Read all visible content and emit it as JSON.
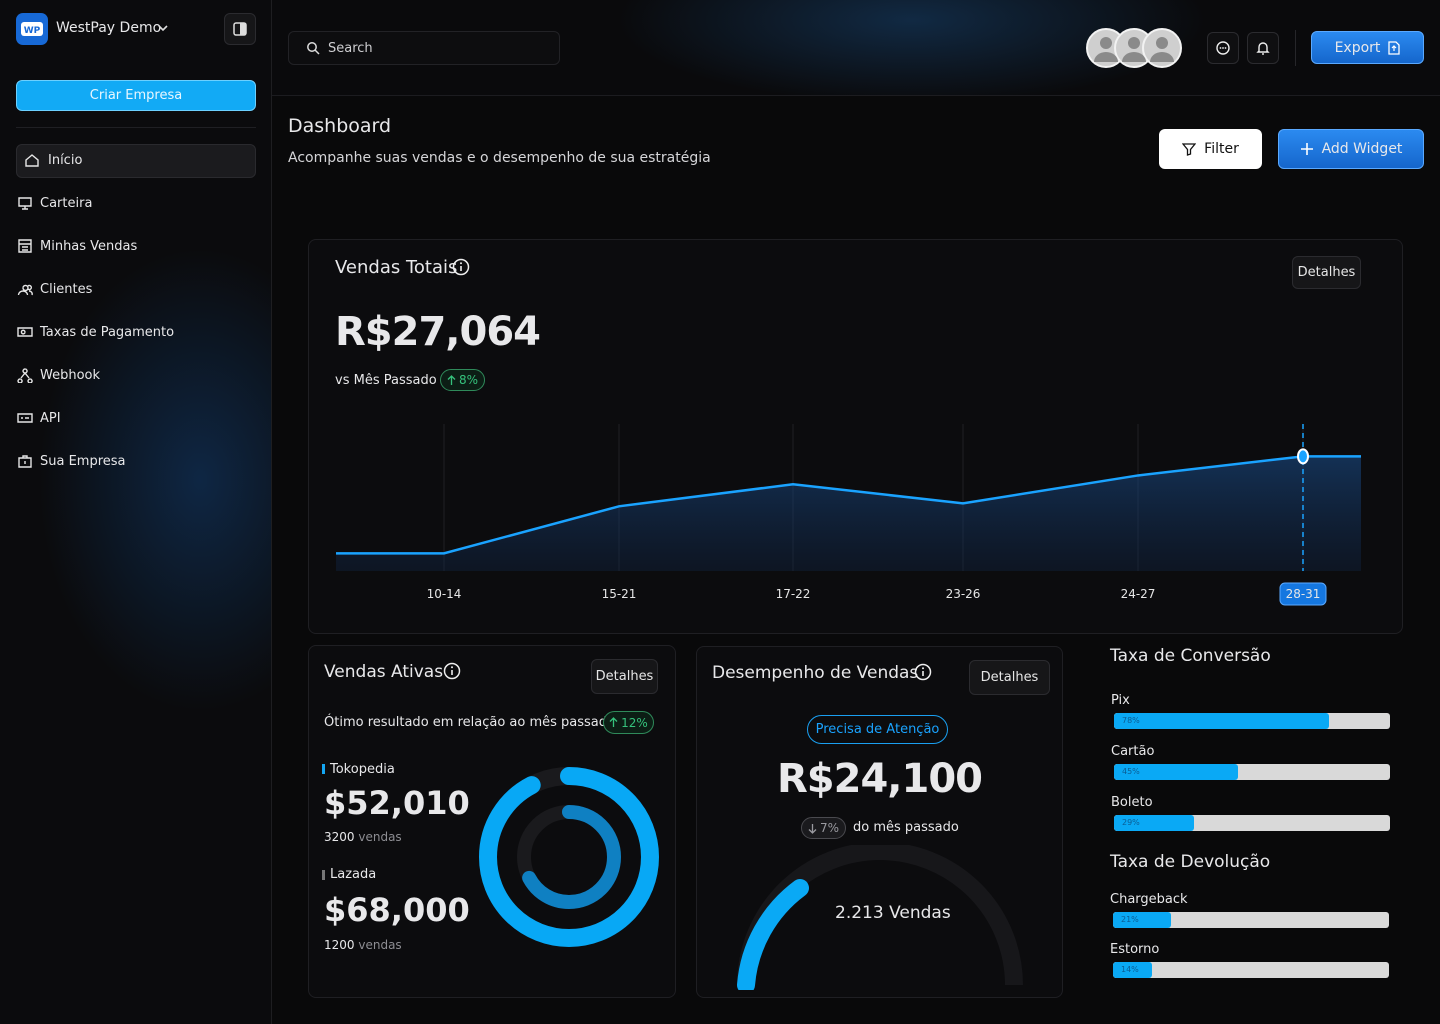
{
  "sidebar": {
    "brand": "WestPay Demo",
    "create_button": "Criar Empresa",
    "nav": [
      "Início",
      "Carteira",
      "Minhas Vendas",
      "Clientes",
      "Taxas de Pagamento",
      "Webhook",
      "API",
      "Sua Empresa"
    ]
  },
  "topbar": {
    "search": "Search",
    "export": "Export"
  },
  "header": {
    "title": "Dashboard",
    "subtitle": "Acompanhe suas vendas e o desempenho de sua estratégia",
    "filter": "Filter",
    "add_widget": "Add Widget"
  },
  "total_sales": {
    "title": "Vendas Totais",
    "details": "Detalhes",
    "amount": "R$27,064",
    "comparison": "vs Mês Passado",
    "change": "8%",
    "chart": {
      "type": "line",
      "categories": [
        "10-14",
        "15-21",
        "17-22",
        "23-26",
        "24-27",
        "28-31"
      ],
      "values": [
        12,
        44,
        59,
        46,
        65,
        78
      ],
      "ylim": [
        0,
        100
      ],
      "color": "#1aa3ff"
    }
  },
  "active_sales": {
    "title": "Vendas Ativas",
    "details": "Detalhes",
    "note": "Ótimo resultado em relação ao mês passado",
    "change": "12%",
    "stores": [
      {
        "name": "Tokopedia",
        "amount": "$52,010",
        "count": "3200",
        "unit": "vendas"
      },
      {
        "name": "Lazada",
        "amount": "$68,000",
        "count": "1200",
        "unit": "vendas"
      }
    ]
  },
  "performance": {
    "title": "Desempenho de Vendas",
    "details": "Detalhes",
    "badge": "Precisa de Atenção",
    "amount": "R$24,100",
    "change": "7%",
    "change_text": "do mês passado",
    "gauge_label": "2.213 Vendas"
  },
  "conversion": {
    "title": "Taxa de Conversão",
    "items": [
      {
        "name": "Pix",
        "value": 78,
        "value_label": "78%"
      },
      {
        "name": "Cartão",
        "value": 45,
        "value_label": "45%"
      },
      {
        "name": "Boleto",
        "value": 29,
        "value_label": "29%"
      }
    ]
  },
  "returns": {
    "title": "Taxa de Devolução",
    "items": [
      {
        "name": "Chargeback",
        "value": 21,
        "value_label": "21%"
      },
      {
        "name": "Estorno",
        "value": 14,
        "value_label": "14%"
      }
    ]
  }
}
